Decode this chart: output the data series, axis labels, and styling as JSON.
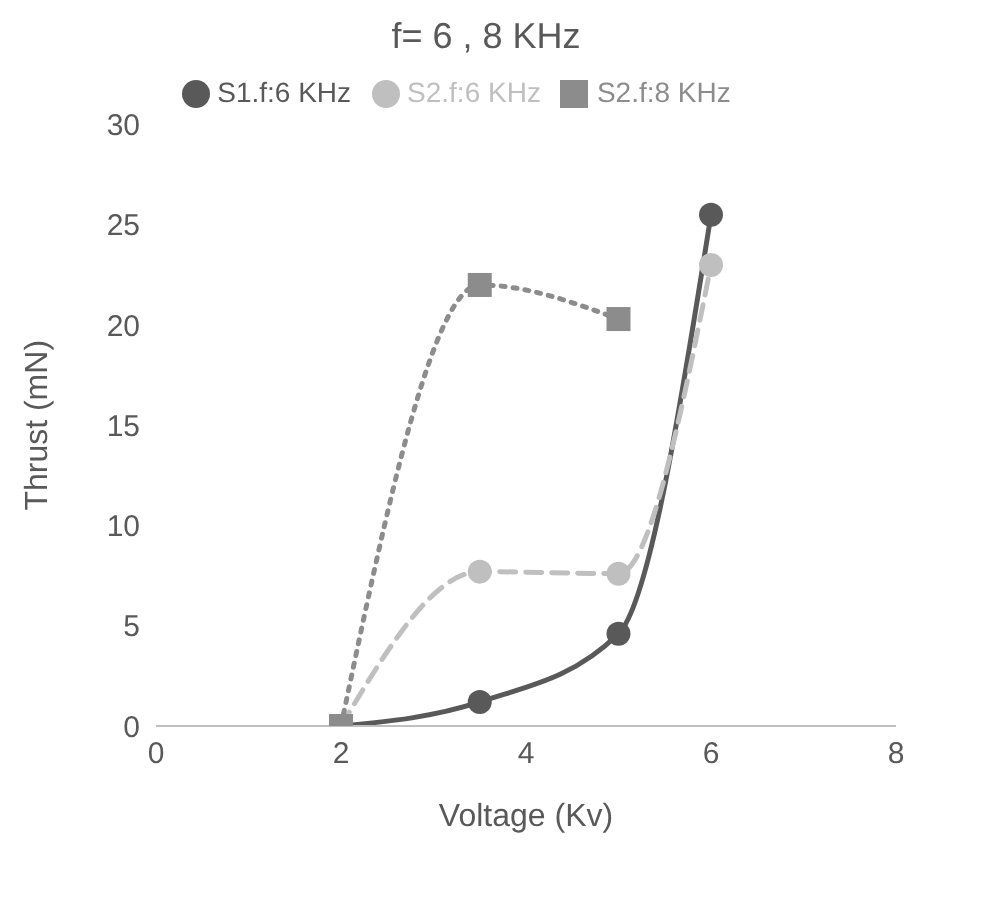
{
  "chart_data": {
    "type": "line",
    "title": "f= 6 , 8 KHz",
    "xlabel": "Voltage (Kv)",
    "ylabel": "Thrust (mN)",
    "xlim": [
      0,
      8
    ],
    "xticks": [
      0,
      2,
      4,
      6,
      8
    ],
    "ylim": [
      0,
      30
    ],
    "yticks": [
      0,
      5,
      10,
      15,
      20,
      25,
      30
    ],
    "grid": false,
    "legend": "top",
    "series": [
      {
        "name": "S1.f:6 KHz",
        "color": "#595959",
        "x": [
          2,
          3.5,
          5,
          6
        ],
        "values": [
          0,
          1.2,
          4.6,
          25.5
        ],
        "marker": "circle",
        "line_style": "solid"
      },
      {
        "name": "S2.f:6 KHz",
        "color": "#bfbfbf",
        "x": [
          2,
          3.5,
          5,
          6
        ],
        "values": [
          0,
          7.7,
          7.6,
          23
        ],
        "marker": "circle",
        "line_style": "dashed"
      },
      {
        "name": "S2.f:8 KHz",
        "color": "#8c8c8c",
        "x": [
          2,
          3.5,
          5
        ],
        "values": [
          0,
          22,
          20.3
        ],
        "marker": "square",
        "line_style": "dotted"
      }
    ]
  }
}
